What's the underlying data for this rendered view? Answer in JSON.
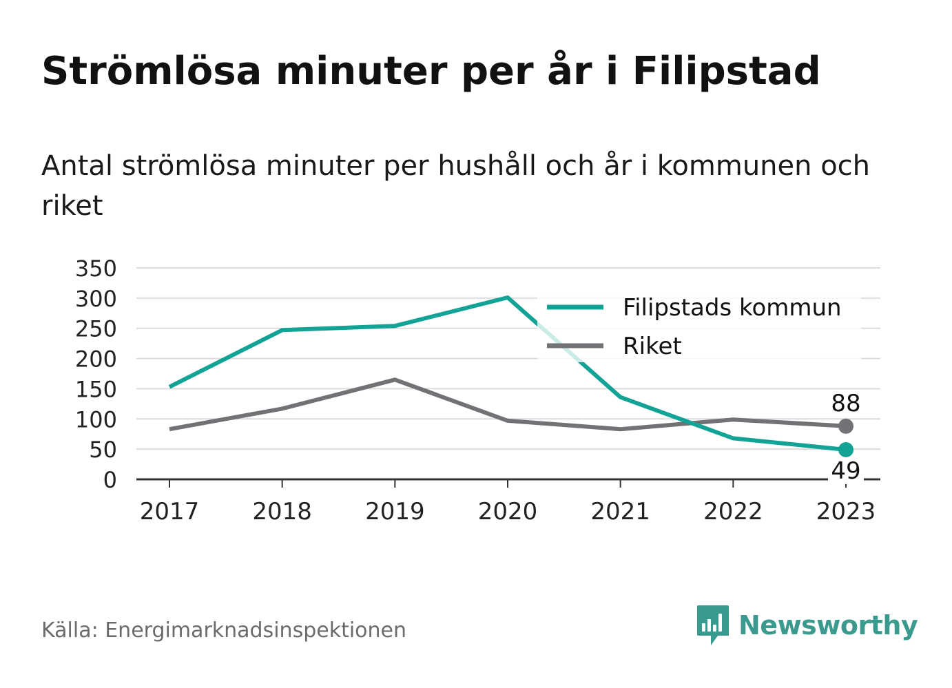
{
  "title": "Strömlösa minuter per år i Filipstad",
  "subtitle": "Antal strömlösa minuter per hushåll och år i kommunen och riket",
  "source": "Källa: Energimarknadsinspektionen",
  "brand": {
    "name": "Newsworthy",
    "icon": "newsworthy-logo-icon",
    "color": "#3a9a8e"
  },
  "chart_data": {
    "type": "line",
    "x": [
      "2017",
      "2018",
      "2019",
      "2020",
      "2021",
      "2022",
      "2023"
    ],
    "ylim": [
      0,
      350
    ],
    "yticks": [
      "0",
      "50",
      "100",
      "150",
      "200",
      "250",
      "300",
      "350"
    ],
    "grid": true,
    "legend_position": "top-right",
    "series": [
      {
        "name": "Filipstads kommun",
        "color": "#13a396",
        "values": [
          153,
          247,
          254,
          301,
          136,
          68,
          49
        ],
        "end_label": "49"
      },
      {
        "name": "Riket",
        "color": "#717176",
        "values": [
          83,
          117,
          165,
          97,
          83,
          99,
          88
        ],
        "end_label": "88"
      }
    ]
  }
}
